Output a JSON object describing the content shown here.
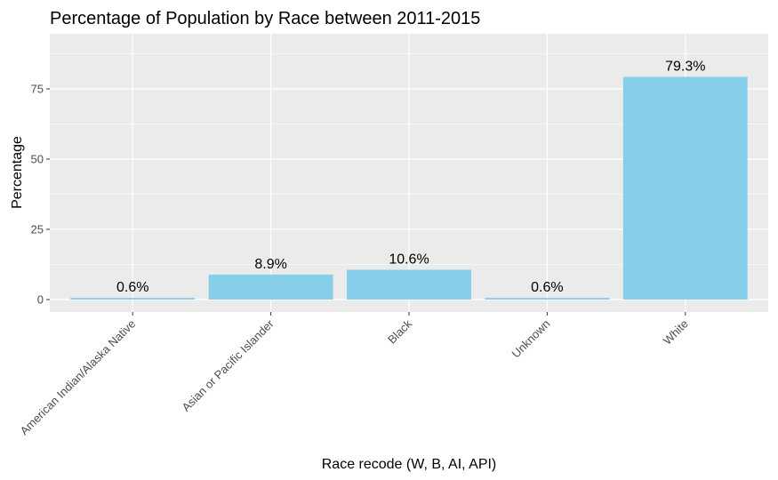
{
  "chart_data": {
    "type": "bar",
    "title": "Percentage of Population by Race between 2011-2015",
    "xlabel": "Race recode (W, B, AI, API)",
    "ylabel": "Percentage",
    "categories": [
      "American Indian/Alaska Native",
      "Asian or Pacific Islander",
      "Black",
      "Unknown",
      "White"
    ],
    "values": [
      0.6,
      8.9,
      10.6,
      0.6,
      79.3
    ],
    "data_labels": [
      "0.6%",
      "8.9%",
      "10.6%",
      "0.6%",
      "79.3%"
    ],
    "yticks": [
      0,
      25,
      50,
      75
    ],
    "ylim": [
      0,
      93.3
    ],
    "grid": true,
    "legend": "none",
    "colors": {
      "bar": "#87CEEB",
      "panel": "#EBEBEB",
      "grid": "#FFFFFF"
    }
  }
}
